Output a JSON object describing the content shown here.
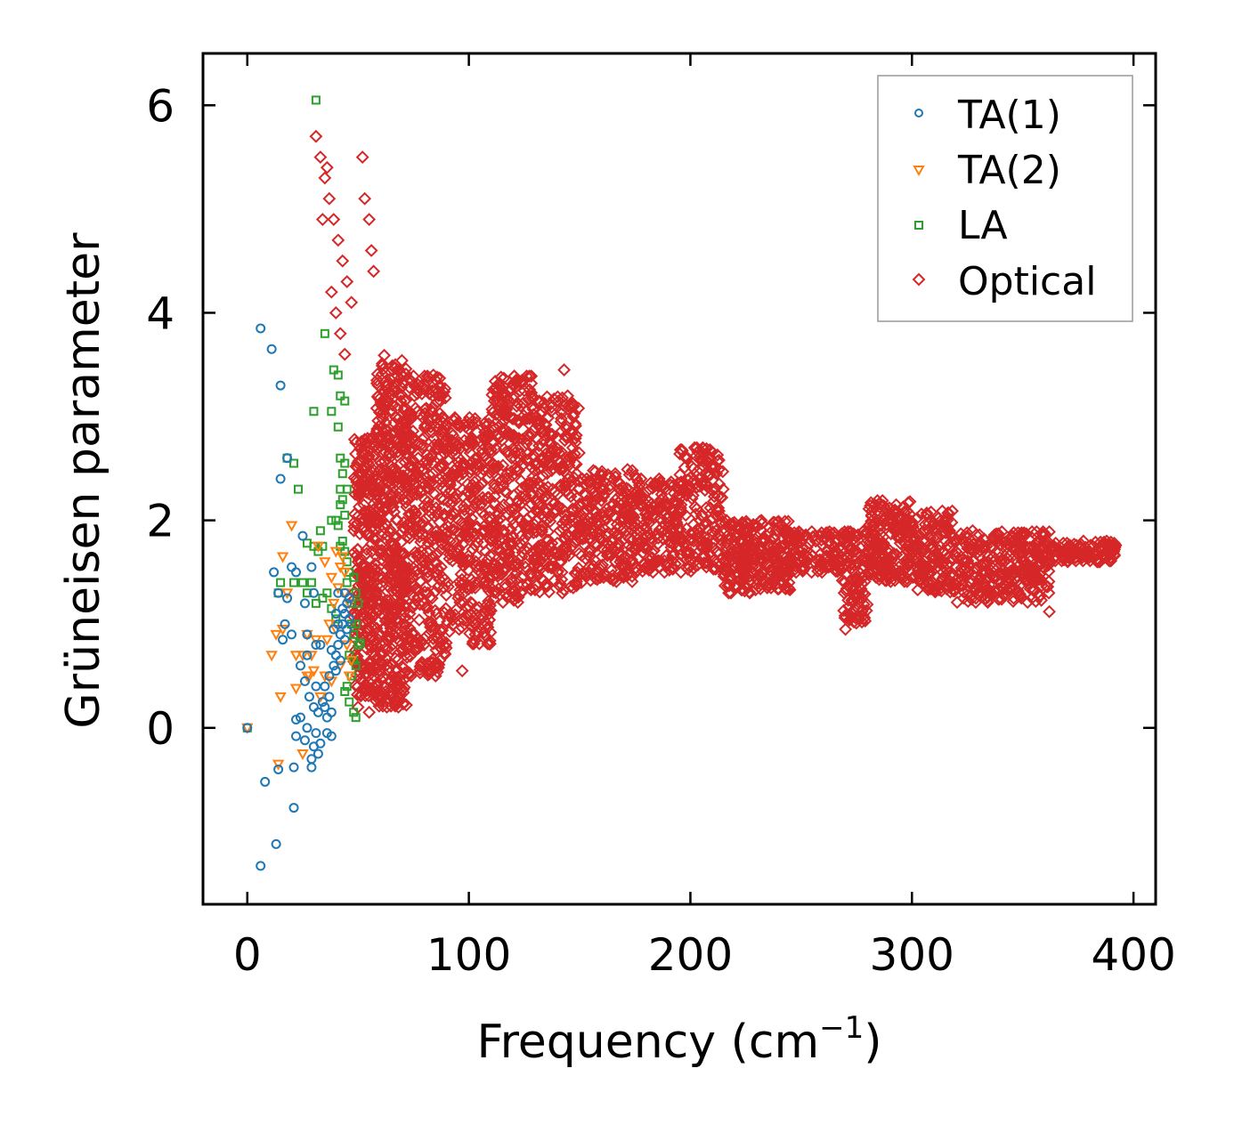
{
  "chart_data": {
    "type": "scatter",
    "title": "",
    "xlabel": "Frequency (cm",
    "xlabel_sup": "−1",
    "xlabel_close": ")",
    "ylabel": "Grüneisen parameter",
    "xlim": [
      -20,
      410
    ],
    "ylim": [
      -1.7,
      6.5
    ],
    "xticks": [
      0,
      100,
      200,
      300,
      400
    ],
    "xtick_labels": [
      "0",
      "100",
      "200",
      "300",
      "400"
    ],
    "yticks": [
      0,
      2,
      4,
      6
    ],
    "ytick_labels": [
      "0",
      "2",
      "4",
      "6"
    ],
    "grid": false,
    "legend_position": "top-right",
    "series": [
      {
        "name": "TA(1)",
        "color": "#1f77b4",
        "marker": "circle",
        "points": [
          [
            0,
            0
          ],
          [
            6,
            3.85
          ],
          [
            11,
            3.65
          ],
          [
            15,
            3.3
          ],
          [
            18,
            2.6
          ],
          [
            15,
            2.4
          ],
          [
            12,
            1.5
          ],
          [
            22,
            1.5
          ],
          [
            20,
            1.55
          ],
          [
            14,
            1.3
          ],
          [
            18,
            1.25
          ],
          [
            17,
            1.0
          ],
          [
            16,
            0.85
          ],
          [
            20,
            0.9
          ],
          [
            25,
            1.85
          ],
          [
            29,
            1.55
          ],
          [
            30,
            1.3
          ],
          [
            26,
            1.2
          ],
          [
            27,
            0.9
          ],
          [
            31,
            0.8
          ],
          [
            27,
            0.7
          ],
          [
            33,
            0.8
          ],
          [
            24,
            0.6
          ],
          [
            26,
            0.45
          ],
          [
            28,
            0.3
          ],
          [
            31,
            0.4
          ],
          [
            32,
            0.15
          ],
          [
            34,
            0.25
          ],
          [
            30,
            0.2
          ],
          [
            24,
            0.1
          ],
          [
            22,
            0.08
          ],
          [
            27,
            0.0
          ],
          [
            31,
            -0.05
          ],
          [
            33,
            -0.15
          ],
          [
            30,
            -0.18
          ],
          [
            32,
            -0.25
          ],
          [
            29,
            -0.3
          ],
          [
            22,
            -0.08
          ],
          [
            26,
            -0.12
          ],
          [
            29,
            -0.38
          ],
          [
            14,
            -0.4
          ],
          [
            21,
            -0.38
          ],
          [
            8,
            -0.52
          ],
          [
            21,
            -0.77
          ],
          [
            13,
            -1.12
          ],
          [
            6,
            -1.33
          ],
          [
            36,
            0.1
          ],
          [
            38,
            0.15
          ],
          [
            35,
            0.4
          ],
          [
            37,
            0.5
          ],
          [
            36,
            -0.05
          ],
          [
            38,
            -0.08
          ],
          [
            39,
            0.6
          ],
          [
            40,
            0.7
          ],
          [
            41,
            0.8
          ],
          [
            42,
            0.9
          ],
          [
            43,
            1.0
          ],
          [
            44,
            1.1
          ],
          [
            45,
            1.2
          ],
          [
            46,
            1.25
          ],
          [
            41,
            1.3
          ],
          [
            40,
            1.1
          ],
          [
            39,
            0.95
          ],
          [
            42,
            0.65
          ],
          [
            44,
            0.85
          ],
          [
            43,
            1.15
          ],
          [
            45,
            0.95
          ],
          [
            40,
            0.55
          ],
          [
            38,
            0.75
          ],
          [
            41,
            1.0
          ],
          [
            44,
            1.3
          ],
          [
            46,
            1.05
          ],
          [
            37,
            0.3
          ],
          [
            35,
            0.2
          ]
        ]
      },
      {
        "name": "TA(2)",
        "color": "#ff7f0e",
        "marker": "triangle",
        "points": [
          [
            0,
            0
          ],
          [
            20,
            1.95
          ],
          [
            16,
            1.65
          ],
          [
            18,
            1.3
          ],
          [
            13,
            0.9
          ],
          [
            16,
            0.95
          ],
          [
            11,
            0.7
          ],
          [
            22,
            0.7
          ],
          [
            25,
            0.7
          ],
          [
            28,
            0.5
          ],
          [
            15,
            0.3
          ],
          [
            22,
            0.38
          ],
          [
            25,
            -0.25
          ],
          [
            14,
            -0.35
          ],
          [
            27,
            0.9
          ],
          [
            29,
            0.7
          ],
          [
            32,
            1.75
          ],
          [
            35,
            1.6
          ],
          [
            38,
            1.45
          ],
          [
            40,
            1.7
          ],
          [
            42,
            1.55
          ],
          [
            44,
            1.5
          ],
          [
            43,
            1.65
          ],
          [
            41,
            1.35
          ],
          [
            39,
            1.2
          ],
          [
            37,
            1.0
          ],
          [
            36,
            0.85
          ],
          [
            40,
            0.95
          ],
          [
            44,
            1.3
          ],
          [
            46,
            1.2
          ],
          [
            45,
            0.8
          ],
          [
            42,
            0.6
          ],
          [
            38,
            0.45
          ],
          [
            35,
            0.5
          ],
          [
            33,
            0.3
          ],
          [
            46,
            0.5
          ],
          [
            47,
            0.65
          ],
          [
            30,
            0.55
          ],
          [
            27,
            0.5
          ],
          [
            31,
            0.85
          ]
        ]
      },
      {
        "name": "LA",
        "color": "#2ca02c",
        "marker": "square",
        "points": [
          [
            0,
            0
          ],
          [
            31,
            6.05
          ],
          [
            35,
            3.8
          ],
          [
            39,
            3.45
          ],
          [
            41,
            3.4
          ],
          [
            42,
            3.2
          ],
          [
            44,
            3.15
          ],
          [
            30,
            3.05
          ],
          [
            38,
            3.05
          ],
          [
            41,
            2.9
          ],
          [
            42,
            2.6
          ],
          [
            44,
            2.55
          ],
          [
            43,
            2.45
          ],
          [
            42,
            2.3
          ],
          [
            45,
            2.3
          ],
          [
            43,
            2.2
          ],
          [
            42,
            2.15
          ],
          [
            44,
            2.05
          ],
          [
            41,
            1.95
          ],
          [
            38,
            2.0
          ],
          [
            40,
            2.0
          ],
          [
            33,
            1.9
          ],
          [
            34,
            1.75
          ],
          [
            30,
            1.75
          ],
          [
            32,
            1.7
          ],
          [
            27,
            1.78
          ],
          [
            18,
            2.6
          ],
          [
            21,
            2.55
          ],
          [
            23,
            2.3
          ],
          [
            15,
            1.4
          ],
          [
            14,
            1.3
          ],
          [
            21,
            1.4
          ],
          [
            25,
            1.4
          ],
          [
            27,
            1.3
          ],
          [
            29,
            1.4
          ],
          [
            31,
            1.2
          ],
          [
            34,
            1.25
          ],
          [
            36,
            1.3
          ],
          [
            38,
            1.15
          ],
          [
            40,
            1.05
          ],
          [
            45,
            1.6
          ],
          [
            46,
            1.5
          ],
          [
            48,
            1.45
          ],
          [
            49,
            1.3
          ],
          [
            50,
            1.2
          ],
          [
            47,
            1.0
          ],
          [
            48,
            0.9
          ],
          [
            50,
            0.8
          ],
          [
            51,
            0.82
          ],
          [
            46,
            0.7
          ],
          [
            48,
            0.65
          ],
          [
            49,
            0.6
          ],
          [
            47,
            0.5
          ],
          [
            45,
            0.4
          ],
          [
            46,
            0.25
          ],
          [
            48,
            0.15
          ],
          [
            49,
            0.1
          ],
          [
            44,
            0.35
          ],
          [
            47,
            1.2
          ],
          [
            49,
            1.0
          ],
          [
            45,
            1.4
          ],
          [
            43,
            1.8
          ],
          [
            42,
            1.75
          ],
          [
            44,
            1.7
          ]
        ]
      },
      {
        "name": "Optical",
        "color": "#d62728",
        "marker": "diamond",
        "points": []
      }
    ]
  },
  "legend": {
    "entries": [
      "TA(1)",
      "TA(2)",
      "LA",
      "Optical"
    ]
  }
}
